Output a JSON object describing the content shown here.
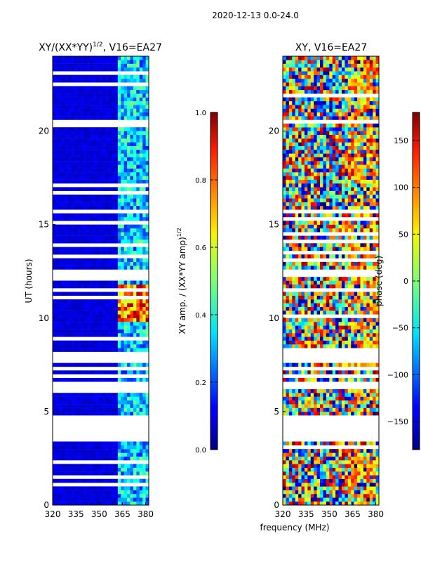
{
  "figure": {
    "suptitle": "2020-12-13 0.0-24.0",
    "xlabel_shared": "frequency (MHz)"
  },
  "chart_data": [
    {
      "type": "heatmap",
      "title": "XY/(XX*YY)",
      "title_sup": "1/2",
      "title_suffix": ", V16=EA27",
      "xlabel": "",
      "ylabel": "UT (hours)",
      "xlim": [
        320,
        382
      ],
      "ylim": [
        0,
        24
      ],
      "xticks": [
        "320",
        "335",
        "350",
        "365",
        "380"
      ],
      "xtick_values": [
        320,
        335,
        350,
        365,
        380
      ],
      "yticks": [
        "0",
        "5",
        "10",
        "15",
        "20"
      ],
      "ytick_values": [
        0,
        5,
        10,
        15,
        20
      ],
      "colormap": "jet",
      "colorbar": {
        "label": "XY amp. / (XX*YY amp)",
        "label_sup": "1/2",
        "range": [
          0.0,
          1.0
        ],
        "ticks": [
          "0.0",
          "0.2",
          "0.4",
          "0.6",
          "0.8",
          "1.0"
        ],
        "tick_values": [
          0.0,
          0.2,
          0.4,
          0.6,
          0.8,
          1.0
        ]
      },
      "flagged_ut_ranges": [
        [
          3.4,
          4.7
        ],
        [
          6.3,
          6.6
        ],
        [
          6.8,
          7.0
        ],
        [
          7.2,
          7.4
        ],
        [
          7.6,
          7.9
        ],
        [
          12.3,
          12.6
        ],
        [
          15.6,
          15.8
        ]
      ],
      "band_channels_mhz": [
        363,
        382
      ],
      "high_amp_ut_range": [
        9.8,
        11.7
      ]
    },
    {
      "type": "heatmap",
      "title": "XY, V16=EA27",
      "xlabel": "frequency (MHz)",
      "ylabel": "",
      "xlim": [
        320,
        382
      ],
      "ylim": [
        0,
        24
      ],
      "xticks": [
        "320",
        "335",
        "350",
        "365",
        "380"
      ],
      "xtick_values": [
        320,
        335,
        350,
        365,
        380
      ],
      "yticks": [
        "0",
        "5",
        "10",
        "15",
        "20"
      ],
      "ytick_values": [
        0,
        5,
        10,
        15,
        20
      ],
      "colormap": "jet",
      "colorbar": {
        "label": "phase (deg)",
        "range": [
          -180,
          180
        ],
        "ticks": [
          "−150",
          "−100",
          "−50",
          "0",
          "50",
          "100",
          "150"
        ],
        "tick_values": [
          -150,
          -100,
          -50,
          0,
          50,
          100,
          150
        ]
      },
      "flagged_ut_ranges": [
        [
          3.4,
          4.7
        ],
        [
          6.3,
          6.6
        ],
        [
          6.8,
          7.0
        ],
        [
          7.2,
          7.4
        ],
        [
          7.6,
          7.9
        ],
        [
          12.3,
          12.6
        ],
        [
          15.6,
          15.8
        ]
      ]
    }
  ]
}
